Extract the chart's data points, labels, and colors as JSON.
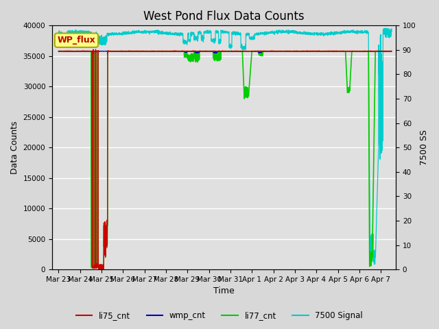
{
  "title": "West Pond Flux Data Counts",
  "xlabel": "Time",
  "ylabel_left": "Data Counts",
  "ylabel_right": "7500 SS",
  "ylim_left": [
    0,
    40000
  ],
  "ylim_right": [
    0,
    100
  ],
  "xtick_labels": [
    "Mar 23",
    "Mar 24",
    "Mar 25",
    "Mar 26",
    "Mar 27",
    "Mar 28",
    "Mar 29",
    "Mar 30",
    "Mar 31",
    "Apr 1",
    "Apr 2",
    "Apr 3",
    "Apr 4",
    "Apr 5",
    "Apr 6",
    "Apr 7"
  ],
  "fig_bg_color": "#d8d8d8",
  "plot_bg_color": "#e0e0e0",
  "legend_box_color": "#ffff88",
  "legend_box_text": "WP_flux",
  "li75_color": "#cc0000",
  "wmp_color": "#0000cc",
  "li77_color": "#00cc00",
  "signal7500_color": "#00cccc",
  "title_fontsize": 12,
  "axis_fontsize": 9,
  "tick_fontsize": 7.5
}
